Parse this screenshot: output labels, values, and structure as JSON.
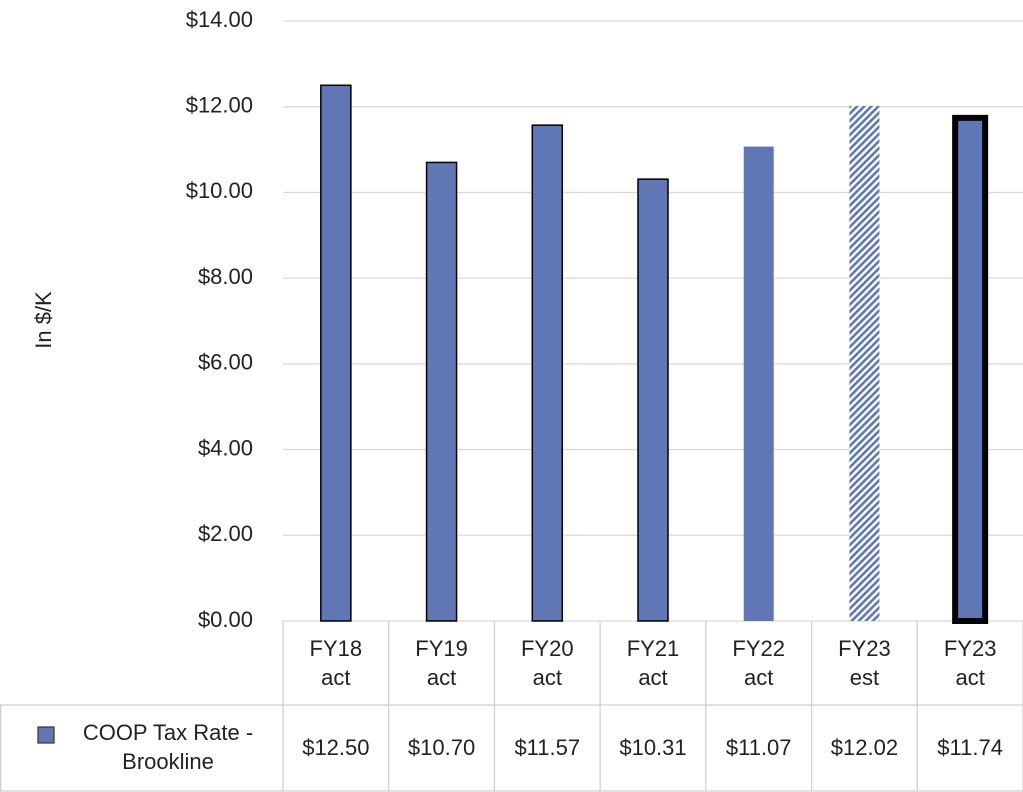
{
  "chart_data": {
    "type": "bar",
    "y_label": "In $/K",
    "categories": [
      "FY18 act",
      "FY19 act",
      "FY20 act",
      "FY21 act",
      "FY22 act",
      "FY23 est",
      "FY23 act"
    ],
    "series": [
      {
        "name": "COOP Tax Rate - Brookline",
        "color": "#5f77b5",
        "values": [
          12.5,
          10.7,
          11.57,
          10.31,
          11.07,
          12.02,
          11.74
        ],
        "value_labels": [
          "$12.50",
          "$10.70",
          "$11.57",
          "$10.31",
          "$11.07",
          "$12.02",
          "$11.74"
        ]
      }
    ],
    "edge_widths": [
      1.5,
      1.5,
      1.5,
      1.5,
      0,
      0,
      6
    ],
    "hatched": [
      false,
      false,
      false,
      false,
      false,
      true,
      false
    ],
    "ylim": [
      0,
      14
    ],
    "yticks": [
      {
        "value": 0,
        "label": "$0.00"
      },
      {
        "value": 2,
        "label": "$2.00"
      },
      {
        "value": 4,
        "label": "$4.00"
      },
      {
        "value": 6,
        "label": "$6.00"
      },
      {
        "value": 8,
        "label": "$8.00"
      },
      {
        "value": 10,
        "label": "$10.00"
      },
      {
        "value": 12,
        "label": "$12.00"
      },
      {
        "value": 14,
        "label": "$14.00"
      }
    ],
    "grid": true,
    "legend": "table"
  }
}
